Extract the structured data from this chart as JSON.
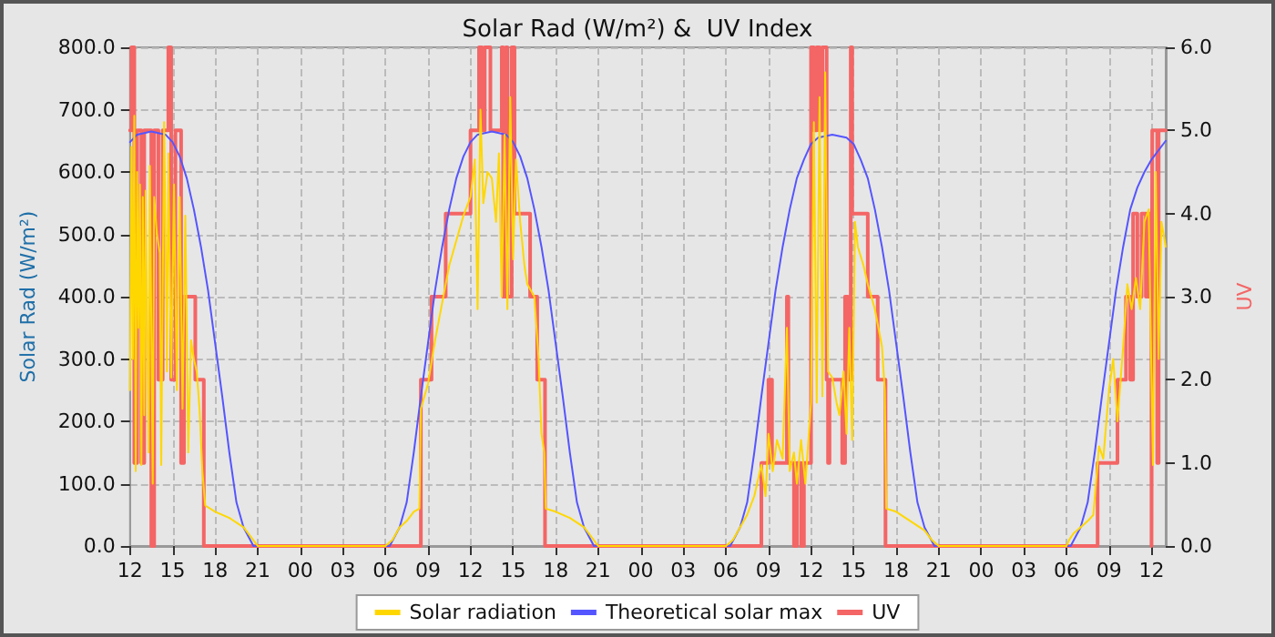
{
  "chart_data": {
    "type": "line",
    "title": "Solar Rad (W/m²) &  UV Index",
    "ylabel": "Solar Rad (W/m²)",
    "y2label": "UV",
    "xlim": [
      "--01-01T12:00",
      "--01-04T13:00"
    ],
    "xticks": [
      {
        "value": "--01-01T12:00",
        "label": "12"
      },
      {
        "value": "--01-01T15:00",
        "label": "15"
      },
      {
        "value": "--01-01T18:00",
        "label": "18"
      },
      {
        "value": "--01-01T21:00",
        "label": "21"
      },
      {
        "value": "--01-02T00:00",
        "label": "00"
      },
      {
        "value": "--01-02T03:00",
        "label": "03"
      },
      {
        "value": "--01-02T06:00",
        "label": "06"
      },
      {
        "value": "--01-02T09:00",
        "label": "09"
      },
      {
        "value": "--01-02T12:00",
        "label": "12"
      },
      {
        "value": "--01-02T15:00",
        "label": "15"
      },
      {
        "value": "--01-02T18:00",
        "label": "18"
      },
      {
        "value": "--01-02T21:00",
        "label": "21"
      },
      {
        "value": "--01-03T00:00",
        "label": "00"
      },
      {
        "value": "--01-03T03:00",
        "label": "03"
      },
      {
        "value": "--01-03T06:00",
        "label": "06"
      },
      {
        "value": "--01-03T09:00",
        "label": "09"
      },
      {
        "value": "--01-03T12:00",
        "label": "12"
      },
      {
        "value": "--01-03T15:00",
        "label": "15"
      },
      {
        "value": "--01-03T18:00",
        "label": "18"
      },
      {
        "value": "--01-03T21:00",
        "label": "21"
      },
      {
        "value": "--01-04T00:00",
        "label": "00"
      },
      {
        "value": "--01-04T03:00",
        "label": "03"
      },
      {
        "value": "--01-04T06:00",
        "label": "06"
      },
      {
        "value": "--01-04T09:00",
        "label": "09"
      },
      {
        "value": "--01-04T12:00",
        "label": "12"
      }
    ],
    "ylim": [
      0,
      800
    ],
    "yticks": [
      {
        "value": 0,
        "label": "0.0"
      },
      {
        "value": 100,
        "label": "100.0"
      },
      {
        "value": 200,
        "label": "200.0"
      },
      {
        "value": 300,
        "label": "300.0"
      },
      {
        "value": 400,
        "label": "400.0"
      },
      {
        "value": 500,
        "label": "500.0"
      },
      {
        "value": 600,
        "label": "600.0"
      },
      {
        "value": 700,
        "label": "700.0"
      },
      {
        "value": 800,
        "label": "800.0"
      }
    ],
    "y2lim": [
      0,
      6
    ],
    "y2ticks": [
      {
        "value": 0,
        "label": "0.0"
      },
      {
        "value": 1,
        "label": "1.0"
      },
      {
        "value": 2,
        "label": "2.0"
      },
      {
        "value": 3,
        "label": "3.0"
      },
      {
        "value": 4,
        "label": "4.0"
      },
      {
        "value": 5,
        "label": "5.0"
      },
      {
        "value": 6,
        "label": "6.0"
      }
    ],
    "grid": true,
    "legend": "bottom",
    "marker": "none",
    "line_style": "solid",
    "series": [
      {
        "name": "Solar radiation",
        "color": "#ffd700",
        "x": [
          "--01-01T12:00",
          "--01-01T12:06",
          "--01-01T12:12",
          "--01-01T12:18",
          "--01-01T12:24",
          "--01-01T12:30",
          "--01-01T12:36",
          "--01-01T12:42",
          "--01-01T12:48",
          "--01-01T12:54",
          "--01-01T13:00",
          "--01-01T13:06",
          "--01-01T13:18",
          "--01-01T13:24",
          "--01-01T13:36",
          "--01-01T13:42",
          "--01-01T13:54",
          "--01-01T14:06",
          "--01-01T14:12",
          "--01-01T14:24",
          "--01-01T14:30",
          "--01-01T14:36",
          "--01-01T14:42",
          "--01-01T14:54",
          "--01-01T15:06",
          "--01-01T15:18",
          "--01-01T15:30",
          "--01-01T15:42",
          "--01-01T15:54",
          "--01-01T16:06",
          "--01-01T16:18",
          "--01-01T16:30",
          "--01-01T16:42",
          "--01-01T16:54",
          "--01-01T17:06",
          "--01-01T17:18",
          "--01-01T18:00",
          "--01-01T19:00",
          "--01-01T20:00",
          "--01-01T20:30",
          "--01-01T21:00",
          "--01-02T06:00",
          "--01-02T06:30",
          "--01-02T07:00",
          "--01-02T07:30",
          "--01-02T08:00",
          "--01-02T08:24",
          "--01-02T08:30",
          "--01-02T09:00",
          "--01-02T09:30",
          "--01-02T10:00",
          "--01-02T10:30",
          "--01-02T11:00",
          "--01-02T11:30",
          "--01-02T12:00",
          "--01-02T12:18",
          "--01-02T12:30",
          "--01-02T12:42",
          "--01-02T12:54",
          "--01-02T13:12",
          "--01-02T13:30",
          "--01-02T13:48",
          "--01-02T14:00",
          "--01-02T14:12",
          "--01-02T14:24",
          "--01-02T14:36",
          "--01-02T14:48",
          "--01-02T15:00",
          "--01-02T15:12",
          "--01-02T15:30",
          "--01-02T15:48",
          "--01-02T16:00",
          "--01-02T16:30",
          "--01-02T16:48",
          "--01-02T17:00",
          "--01-02T17:12",
          "--01-02T17:18",
          "--01-02T18:00",
          "--01-02T19:00",
          "--01-02T20:00",
          "--01-02T20:30",
          "--01-02T21:00",
          "--01-03T06:00",
          "--01-03T06:30",
          "--01-03T07:00",
          "--01-03T07:30",
          "--01-03T08:00",
          "--01-03T08:18",
          "--01-03T08:30",
          "--01-03T08:48",
          "--01-03T09:00",
          "--01-03T09:18",
          "--01-03T09:36",
          "--01-03T10:00",
          "--01-03T10:18",
          "--01-03T10:30",
          "--01-03T10:48",
          "--01-03T11:00",
          "--01-03T11:18",
          "--01-03T11:36",
          "--01-03T12:00",
          "--01-03T12:12",
          "--01-03T12:24",
          "--01-03T12:36",
          "--01-03T12:48",
          "--01-03T13:00",
          "--01-03T13:12",
          "--01-03T13:30",
          "--01-03T13:48",
          "--01-03T14:00",
          "--01-03T14:18",
          "--01-03T14:30",
          "--01-03T14:42",
          "--01-03T14:54",
          "--01-03T15:06",
          "--01-03T15:18",
          "--01-03T15:42",
          "--01-03T16:00",
          "--01-03T16:30",
          "--01-03T17:00",
          "--01-03T17:12",
          "--01-03T17:18",
          "--01-03T18:00",
          "--01-03T19:00",
          "--01-03T20:00",
          "--01-03T20:30",
          "--01-03T21:00",
          "--01-04T06:00",
          "--01-04T06:12",
          "--01-04T06:30",
          "--01-04T07:00",
          "--01-04T07:30",
          "--01-04T07:54",
          "--01-04T08:18",
          "--01-04T08:36",
          "--01-04T09:00",
          "--01-04T09:18",
          "--01-04T09:36",
          "--01-04T10:00",
          "--01-04T10:18",
          "--01-04T10:36",
          "--01-04T10:54",
          "--01-04T11:12",
          "--01-04T11:30",
          "--01-04T11:48",
          "--01-04T12:06",
          "--01-04T12:18",
          "--01-04T12:30",
          "--01-04T12:42",
          "--01-04T13:00"
        ],
        "values": [
          250,
          640,
          300,
          690,
          120,
          600,
          350,
          580,
          130,
          560,
          210,
          570,
          150,
          610,
          100,
          560,
          500,
          470,
          130,
          680,
          500,
          280,
          630,
          270,
          580,
          250,
          560,
          220,
          530,
          150,
          330,
          300,
          280,
          220,
          120,
          65,
          55,
          45,
          30,
          15,
          0,
          0,
          10,
          30,
          40,
          55,
          60,
          220,
          260,
          330,
          390,
          450,
          490,
          530,
          560,
          620,
          380,
          700,
          550,
          600,
          590,
          520,
          630,
          400,
          660,
          380,
          720,
          460,
          620,
          520,
          450,
          420,
          400,
          300,
          180,
          150,
          60,
          55,
          45,
          30,
          15,
          0,
          0,
          10,
          30,
          50,
          80,
          110,
          130,
          80,
          180,
          120,
          170,
          140,
          350,
          120,
          150,
          100,
          170,
          100,
          230,
          680,
          230,
          720,
          240,
          760,
          280,
          270,
          230,
          210,
          280,
          180,
          350,
          170,
          520,
          480,
          450,
          420,
          380,
          320,
          250,
          60,
          55,
          40,
          25,
          10,
          0,
          0,
          10,
          20,
          30,
          40,
          50,
          160,
          140,
          250,
          300,
          200,
          320,
          420,
          380,
          430,
          380,
          520,
          540,
          130,
          600,
          300,
          520,
          480
        ]
      },
      {
        "name": "Theoretical solar max",
        "color": "#5555ff",
        "x": [
          "--01-01T12:00",
          "--01-01T12:30",
          "--01-01T13:30",
          "--01-01T14:30",
          "--01-01T15:00",
          "--01-01T15:30",
          "--01-01T16:00",
          "--01-01T16:30",
          "--01-01T17:00",
          "--01-01T17:30",
          "--01-01T18:00",
          "--01-01T18:30",
          "--01-01T19:00",
          "--01-01T19:30",
          "--01-01T20:00",
          "--01-01T20:42",
          "--01-02T06:18",
          "--01-02T07:00",
          "--01-02T07:30",
          "--01-02T08:00",
          "--01-02T08:30",
          "--01-02T09:00",
          "--01-02T09:30",
          "--01-02T10:00",
          "--01-02T10:30",
          "--01-02T11:00",
          "--01-02T11:30",
          "--01-02T12:00",
          "--01-02T12:30",
          "--01-02T13:30",
          "--01-02T14:30",
          "--01-02T15:00",
          "--01-02T15:30",
          "--01-02T16:00",
          "--01-02T16:30",
          "--01-02T17:00",
          "--01-02T17:30",
          "--01-02T18:00",
          "--01-02T18:30",
          "--01-02T19:00",
          "--01-02T19:30",
          "--01-02T20:00",
          "--01-02T20:42",
          "--01-03T06:18",
          "--01-03T07:00",
          "--01-03T07:30",
          "--01-03T08:00",
          "--01-03T08:30",
          "--01-03T09:00",
          "--01-03T09:30",
          "--01-03T10:00",
          "--01-03T10:30",
          "--01-03T11:00",
          "--01-03T11:30",
          "--01-03T12:00",
          "--01-03T12:30",
          "--01-03T13:30",
          "--01-03T14:30",
          "--01-03T15:00",
          "--01-03T15:30",
          "--01-03T16:00",
          "--01-03T16:30",
          "--01-03T17:00",
          "--01-03T17:30",
          "--01-03T18:00",
          "--01-03T18:30",
          "--01-03T19:00",
          "--01-03T19:30",
          "--01-03T20:00",
          "--01-03T20:42",
          "--01-04T06:18",
          "--01-04T07:00",
          "--01-04T07:30",
          "--01-04T08:00",
          "--01-04T08:30",
          "--01-04T09:00",
          "--01-04T09:30",
          "--01-04T10:00",
          "--01-04T10:30",
          "--01-04T11:00",
          "--01-04T11:30",
          "--01-04T12:00",
          "--01-04T13:00"
        ],
        "values": [
          648,
          660,
          665,
          660,
          648,
          625,
          590,
          540,
          480,
          410,
          325,
          240,
          150,
          70,
          30,
          0,
          0,
          30,
          70,
          150,
          240,
          325,
          410,
          480,
          540,
          590,
          625,
          648,
          660,
          665,
          660,
          648,
          625,
          590,
          540,
          480,
          410,
          325,
          240,
          150,
          70,
          30,
          0,
          0,
          30,
          70,
          150,
          240,
          325,
          410,
          480,
          540,
          590,
          620,
          645,
          655,
          660,
          655,
          645,
          620,
          590,
          540,
          480,
          410,
          325,
          240,
          150,
          70,
          30,
          0,
          0,
          30,
          70,
          150,
          240,
          325,
          410,
          480,
          540,
          575,
          600,
          620,
          650
        ]
      },
      {
        "name": "UV",
        "type": "step",
        "axis": "y2",
        "color": "#f46565",
        "x": [
          "--01-01T12:00",
          "--01-01T12:06",
          "--01-01T12:18",
          "--01-01T12:30",
          "--01-01T12:48",
          "--01-01T13:00",
          "--01-01T13:30",
          "--01-01T13:42",
          "--01-01T14:00",
          "--01-01T14:18",
          "--01-01T14:42",
          "--01-01T14:54",
          "--01-01T15:12",
          "--01-01T15:36",
          "--01-01T15:48",
          "--01-01T16:36",
          "--01-01T17:12",
          "--01-02T08:30",
          "--01-02T09:15",
          "--01-02T10:15",
          "--01-02T12:00",
          "--01-02T12:36",
          "--01-02T12:48",
          "--01-02T13:00",
          "--01-02T13:24",
          "--01-02T14:12",
          "--01-02T14:18",
          "--01-02T14:30",
          "--01-02T14:36",
          "--01-02T14:54",
          "--01-02T15:06",
          "--01-02T15:30",
          "--01-02T16:12",
          "--01-02T16:42",
          "--01-02T17:15",
          "--01-03T08:30",
          "--01-03T09:00",
          "--01-03T09:15",
          "--01-03T10:18",
          "--01-03T10:24",
          "--01-03T10:48",
          "--01-03T11:00",
          "--01-03T11:18",
          "--01-03T11:30",
          "--01-03T12:00",
          "--01-03T12:12",
          "--01-03T12:24",
          "--01-03T12:36",
          "--01-03T12:48",
          "--01-03T13:06",
          "--01-03T13:12",
          "--01-03T13:18",
          "--01-03T14:12",
          "--01-03T14:24",
          "--01-03T14:36",
          "--01-03T14:48",
          "--01-03T14:54",
          "--01-03T16:00",
          "--01-03T16:42",
          "--01-03T17:15",
          "--01-04T08:12",
          "--01-04T09:36",
          "--01-04T10:12",
          "--01-04T10:30",
          "--01-04T10:42",
          "--01-04T11:00",
          "--01-04T11:18",
          "--01-04T11:36",
          "--01-04T11:48",
          "--01-04T12:00",
          "--01-04T12:03",
          "--01-04T12:24",
          "--01-04T12:30",
          "--01-04T13:00"
        ],
        "values": [
          5,
          6,
          1,
          5,
          1,
          5,
          0,
          5,
          2,
          5,
          6,
          2,
          5,
          1,
          3,
          2,
          0,
          2,
          3,
          4,
          5,
          6,
          5,
          6,
          5,
          6,
          3,
          6,
          3,
          6,
          4,
          4,
          3,
          2,
          0,
          1,
          2,
          1,
          3,
          1,
          0,
          1,
          0,
          1,
          6,
          5,
          6,
          5,
          6,
          2,
          1,
          2,
          1,
          3,
          2,
          6,
          4,
          3,
          2,
          0,
          1,
          2,
          3,
          2,
          4,
          3,
          4,
          3,
          4,
          0,
          5,
          1,
          5,
          5
        ]
      }
    ]
  }
}
